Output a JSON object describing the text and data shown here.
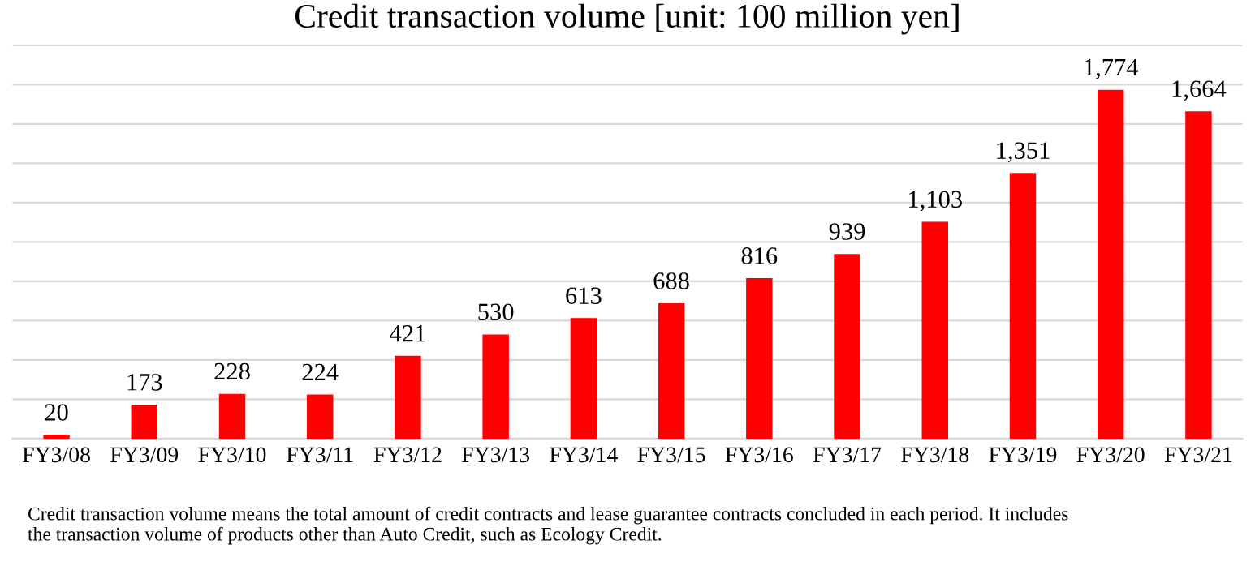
{
  "chart_data": {
    "type": "bar",
    "title": "Credit transaction volume [unit: 100 million yen]",
    "categories": [
      "FY3/08",
      "FY3/09",
      "FY3/10",
      "FY3/11",
      "FY3/12",
      "FY3/13",
      "FY3/14",
      "FY3/15",
      "FY3/16",
      "FY3/17",
      "FY3/18",
      "FY3/19",
      "FY3/20",
      "FY3/21"
    ],
    "values": [
      20,
      173,
      228,
      224,
      421,
      530,
      613,
      688,
      816,
      939,
      1103,
      1351,
      1774,
      1664
    ],
    "color": "#ff0000",
    "value_labels": [
      "20",
      "173",
      "228",
      "224",
      "421",
      "530",
      "613",
      "688",
      "816",
      "939",
      "1,103",
      "1,351",
      "1,774",
      "1,664"
    ],
    "grid": "y",
    "tick_labels": "x",
    "ylim": [
      0,
      2000
    ],
    "yticks": [
      {
        "value": 0,
        "label": null
      },
      {
        "value": 200,
        "label": null
      },
      {
        "value": 400,
        "label": null
      },
      {
        "value": 600,
        "label": null
      },
      {
        "value": 800,
        "label": null
      },
      {
        "value": 1000,
        "label": null
      },
      {
        "value": 1200,
        "label": null
      },
      {
        "value": 1400,
        "label": null
      },
      {
        "value": 1600,
        "label": null
      },
      {
        "value": 1800,
        "label": null
      },
      {
        "value": 2000,
        "label": null
      }
    ],
    "annotations": [
      "Credit transaction volume means the total amount of credit contracts and lease guarantee contracts concluded in each period. It includes\nthe transaction volume of products other than Auto Credit, such as Ecology Credit."
    ]
  }
}
